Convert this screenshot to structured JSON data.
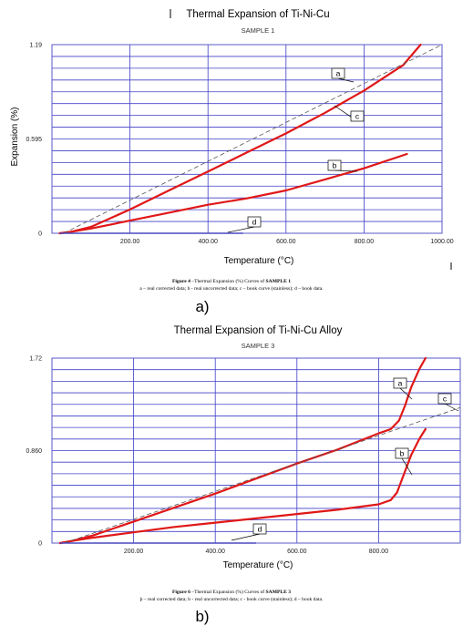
{
  "chart_data": [
    {
      "type": "line",
      "title": "Thermal Expansion of Ti-Ni-Cu",
      "subtitle": "SAMPLE 1",
      "xlabel": "Temperature (°C)",
      "ylabel": "Expansion (%)",
      "xlim": [
        0,
        1000
      ],
      "ylim": [
        0,
        1.19
      ],
      "x_ticks": [
        "200.00",
        "400.00",
        "600.00",
        "800.00",
        "1000.00"
      ],
      "x_tick_values": [
        200,
        400,
        600,
        800,
        1000
      ],
      "y_ticks": [
        "0",
        "0.595",
        "1.19"
      ],
      "y_tick_values": [
        0,
        0.595,
        1.19
      ],
      "grid": true,
      "series": [
        {
          "name": "a",
          "color": "#e01818",
          "style": "solid",
          "x": [
            20,
            50,
            100,
            200,
            300,
            400,
            500,
            600,
            700,
            800,
            900,
            945
          ],
          "y": [
            0.0,
            0.01,
            0.04,
            0.15,
            0.27,
            0.39,
            0.51,
            0.63,
            0.76,
            0.9,
            1.06,
            1.19
          ]
        },
        {
          "name": "b",
          "color": "#e01818",
          "style": "solid",
          "x": [
            20,
            50,
            100,
            200,
            300,
            400,
            500,
            600,
            700,
            800,
            910
          ],
          "y": [
            0.0,
            0.01,
            0.03,
            0.08,
            0.13,
            0.18,
            0.22,
            0.27,
            0.34,
            0.41,
            0.5
          ]
        },
        {
          "name": "c",
          "color": "#555555",
          "style": "dashed",
          "x": [
            30,
            1000
          ],
          "y": [
            0.0,
            1.19
          ]
        },
        {
          "name": "d",
          "color": "#4a4ac0",
          "style": "solid",
          "x": [
            20,
            490
          ],
          "y": [
            0.0,
            0.0
          ]
        }
      ],
      "annotations": [
        "a",
        "b",
        "c",
        "d"
      ],
      "caption_bold": "Figure 4",
      "caption_line1": " –Thermal Expansion (%) Curves of ",
      "caption_line1_bold": "SAMPLE 1",
      "caption_line2": "a – real corrected data; b - real uncorrected data; c – book curve (stainless); d – book data.",
      "panel_label": "a)"
    },
    {
      "type": "line",
      "title": "Thermal Expansion of Ti-Ni-Cu Alloy",
      "subtitle": "SAMPLE 3",
      "xlabel": "Temperature (°C)",
      "ylabel": "",
      "xlim": [
        0,
        1000
      ],
      "ylim": [
        0,
        1.72
      ],
      "x_ticks": [
        "200.00",
        "400.00",
        "600.00",
        "800.00"
      ],
      "x_tick_values": [
        200,
        400,
        600,
        800
      ],
      "y_ticks": [
        "0",
        "0.860",
        "1.72"
      ],
      "y_tick_values": [
        0,
        0.86,
        1.72
      ],
      "grid": true,
      "series": [
        {
          "name": "a",
          "color": "#e01818",
          "style": "solid",
          "x": [
            20,
            50,
            100,
            200,
            300,
            400,
            500,
            600,
            700,
            800,
            830,
            850,
            865,
            880,
            900,
            915
          ],
          "y": [
            0.0,
            0.02,
            0.07,
            0.2,
            0.33,
            0.46,
            0.6,
            0.74,
            0.87,
            1.02,
            1.06,
            1.14,
            1.28,
            1.45,
            1.62,
            1.72
          ]
        },
        {
          "name": "b",
          "color": "#e01818",
          "style": "solid",
          "x": [
            20,
            50,
            100,
            200,
            300,
            400,
            500,
            600,
            700,
            800,
            830,
            845,
            860,
            880,
            900,
            915
          ],
          "y": [
            0.0,
            0.02,
            0.05,
            0.1,
            0.15,
            0.19,
            0.23,
            0.27,
            0.31,
            0.36,
            0.4,
            0.47,
            0.62,
            0.82,
            0.97,
            1.06
          ]
        },
        {
          "name": "c",
          "color": "#555555",
          "style": "dashed",
          "x": [
            30,
            1000
          ],
          "y": [
            0.0,
            1.26
          ]
        },
        {
          "name": "d",
          "color": "#4a4ac0",
          "style": "solid",
          "x": [
            20,
            500
          ],
          "y": [
            0.0,
            0.0
          ]
        }
      ],
      "annotations": [
        "a",
        "b",
        "c",
        "d"
      ],
      "caption_bold": "Figure 6",
      "caption_line1": " –Thermal Expansion (%) Curves of ",
      "caption_line1_bold": "SAMPLE 3",
      "caption_line2": "þ – real corrected data; b - real uncorrected data; c - book curve (stainless); d – book data.",
      "panel_label": "b)"
    }
  ]
}
